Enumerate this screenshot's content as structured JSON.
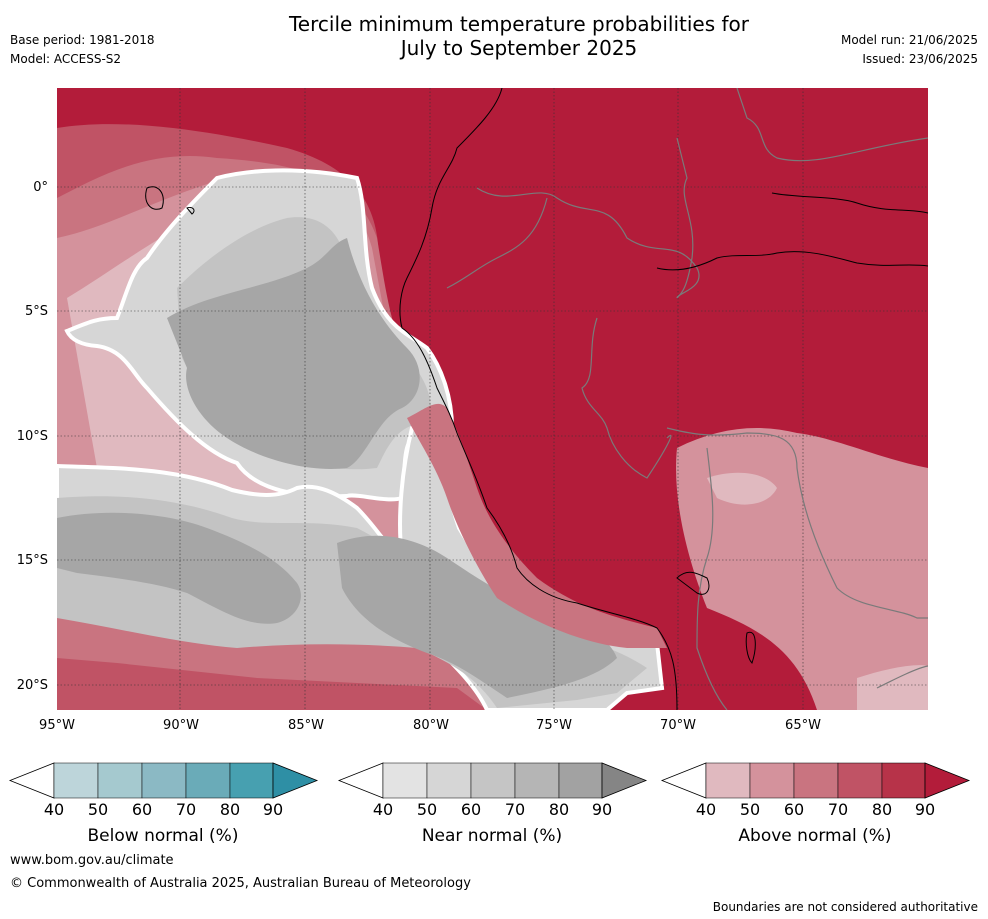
{
  "header": {
    "base_period": "Base period: 1981-2018",
    "model": "Model: ACCESS-S2",
    "title_line1": "Tercile minimum temperature probabilities for",
    "title_line2": "July to September 2025",
    "model_run": "Model run: 21/06/2025",
    "issued": "Issued: 23/06/2025"
  },
  "map": {
    "lat_ticks": [
      "0°",
      "5°S",
      "10°S",
      "15°S",
      "20°S"
    ],
    "lon_ticks": [
      "95°W",
      "90°W",
      "85°W",
      "80°W",
      "75°W",
      "70°W",
      "65°W"
    ],
    "colors": {
      "ocean_base": "#b31c3a",
      "grey_light": "#d6d6d6",
      "grey_mid": "#c3c3c3",
      "grey_dark": "#a6a6a6",
      "red_40": "#e0b9bf",
      "red_50": "#d4929c",
      "red_60": "#c97480",
      "red_70": "#c05365",
      "red_80": "#b73349",
      "red_90": "#b31c3a"
    }
  },
  "legend": {
    "ticks": [
      "40",
      "50",
      "60",
      "70",
      "80",
      "90"
    ],
    "below": {
      "label": "Below normal (%)",
      "colors": [
        "#bdd5da",
        "#a5c9cf",
        "#8bb9c4",
        "#6aabb8",
        "#47a0b0",
        "#2e8fa5"
      ]
    },
    "near": {
      "label": "Near normal (%)",
      "colors": [
        "#e3e3e3",
        "#d6d6d6",
        "#c5c5c5",
        "#b5b5b5",
        "#a2a2a2",
        "#858585"
      ]
    },
    "above": {
      "label": "Above normal (%)",
      "colors": [
        "#e0b9bf",
        "#d4929c",
        "#c97480",
        "#c05365",
        "#b73349",
        "#b31c3a"
      ]
    }
  },
  "footer": {
    "website": "www.bom.gov.au/climate",
    "copyright": "© Commonwealth of Australia 2025, Australian Bureau of Meteorology",
    "disclaimer": "Boundaries are not considered authoritative"
  }
}
